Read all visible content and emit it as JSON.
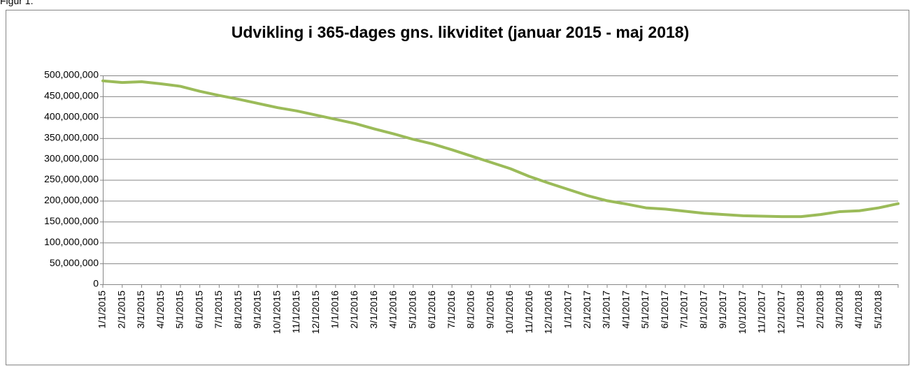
{
  "figure_label": "Figur 1.",
  "chart_data": {
    "type": "line",
    "title": "Udvikling i 365-dages gns. likviditet (januar 2015 - maj 2018)",
    "categories": [
      "1/1/2015",
      "2/1/2015",
      "3/1/2015",
      "4/1/2015",
      "5/1/2015",
      "6/1/2015",
      "7/1/2015",
      "8/1/2015",
      "9/1/2015",
      "10/1/2015",
      "11/1/2015",
      "12/1/2015",
      "1/1/2016",
      "2/1/2016",
      "3/1/2016",
      "4/1/2016",
      "5/1/2016",
      "6/1/2016",
      "7/1/2016",
      "8/1/2016",
      "9/1/2016",
      "10/1/2016",
      "11/1/2016",
      "12/1/2016",
      "1/1/2017",
      "2/1/2017",
      "3/1/2017",
      "4/1/2017",
      "5/1/2017",
      "6/1/2017",
      "7/1/2017",
      "8/1/2017",
      "9/1/2017",
      "10/1/2017",
      "11/1/2017",
      "12/1/2017",
      "1/1/2018",
      "2/1/2018",
      "3/1/2018",
      "4/1/2018",
      "5/1/2018",
      null
    ],
    "values": [
      487000000,
      483000000,
      485000000,
      480000000,
      474000000,
      462000000,
      452000000,
      443000000,
      433000000,
      423000000,
      415000000,
      405000000,
      395000000,
      385000000,
      372000000,
      360000000,
      347000000,
      336000000,
      322000000,
      307000000,
      292000000,
      277000000,
      258000000,
      242000000,
      227000000,
      212000000,
      200000000,
      192000000,
      183000000,
      180000000,
      175000000,
      170000000,
      167000000,
      164000000,
      163000000,
      162000000,
      162000000,
      167000000,
      174000000,
      176000000,
      183000000,
      193000000
    ],
    "color": "#9bbb59",
    "ylim": [
      0,
      500000000
    ],
    "yticks": [
      0,
      {
        "value": 50000000,
        "label": "50,000,000"
      },
      {
        "value": 100000000,
        "label": "100,000,000"
      },
      {
        "value": 150000000,
        "label": "150,000,000"
      },
      {
        "value": 200000000,
        "label": "200,000,000"
      },
      {
        "value": 250000000,
        "label": "250,000,000"
      },
      {
        "value": 300000000,
        "label": "300,000,000"
      },
      {
        "value": 350000000,
        "label": "350,000,000"
      },
      {
        "value": 400000000,
        "label": "400,000,000"
      },
      {
        "value": 450000000,
        "label": "450,000,000"
      },
      {
        "value": 500000000,
        "label": "500,000,000"
      }
    ],
    "grid": true
  }
}
